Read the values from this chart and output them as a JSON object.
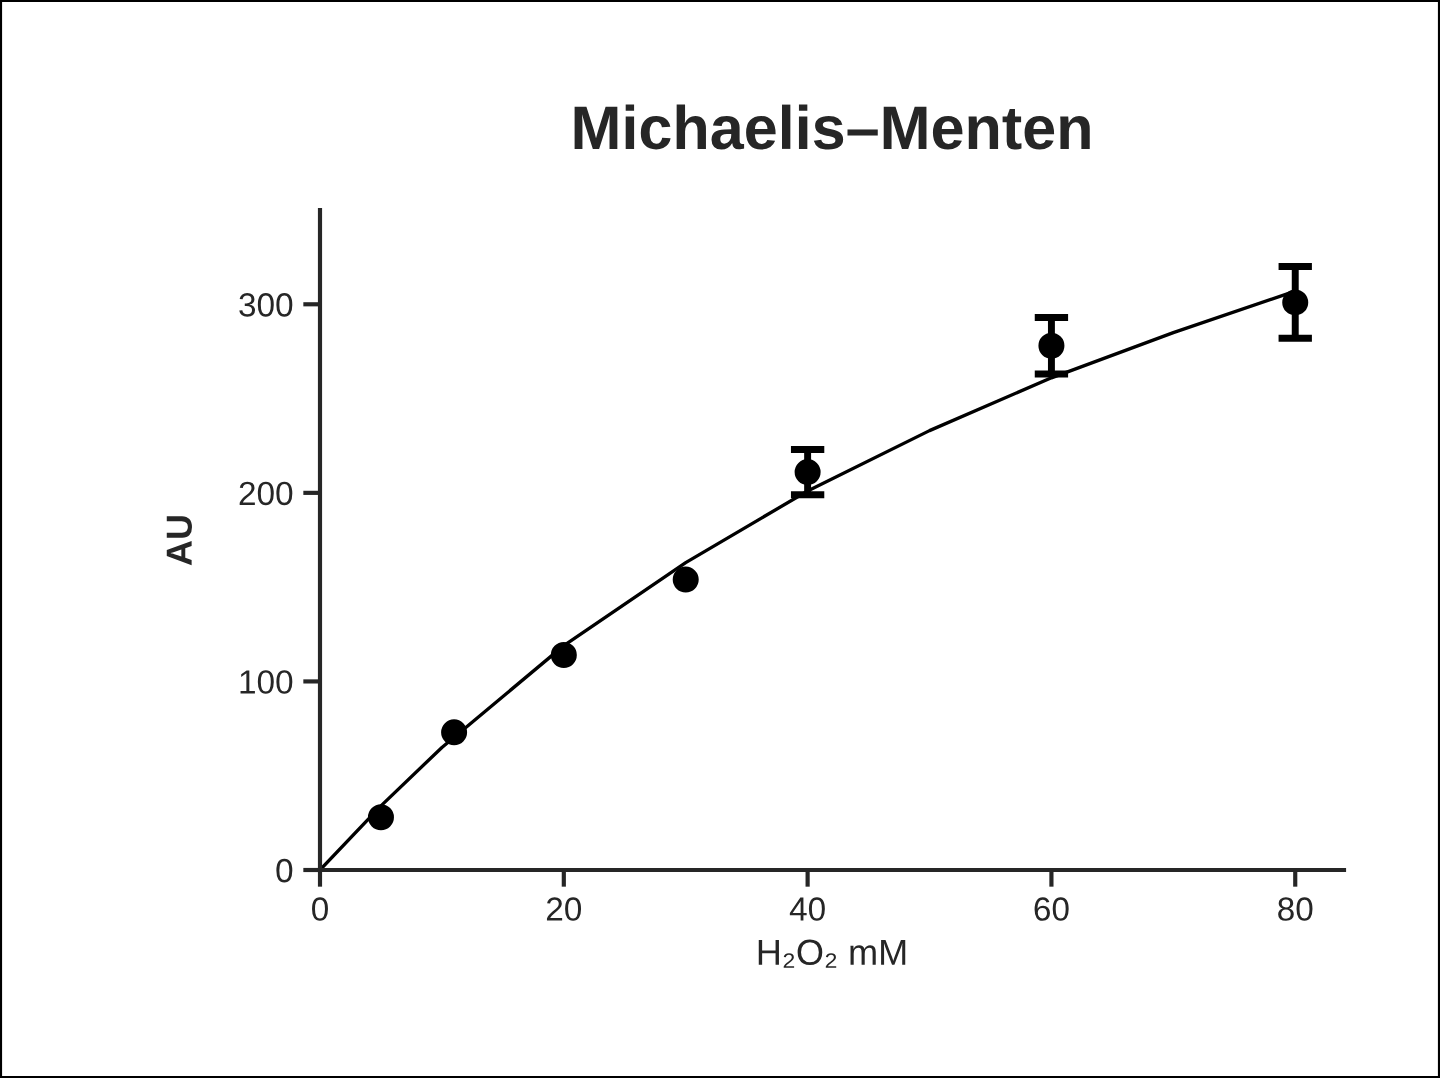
{
  "chart_data": {
    "type": "scatter",
    "title": "Michaelis–Menten",
    "xlabel": "H₂O₂ mM",
    "ylabel": "AU",
    "xlim": [
      0,
      84
    ],
    "xticks": [
      0,
      20,
      40,
      60,
      80
    ],
    "ylim": [
      0,
      350
    ],
    "yticks": [
      0,
      100,
      200,
      300
    ],
    "grid": false,
    "legend": false,
    "series": [
      {
        "color": "#000000",
        "marker": "circle",
        "x": [
          5,
          11,
          20,
          30,
          40,
          60,
          80
        ],
        "values": [
          28,
          73,
          114,
          154,
          211,
          278,
          301
        ],
        "errors": [
          null,
          null,
          null,
          null,
          12,
          15,
          19
        ]
      },
      {
        "type": "line",
        "color": "#000000",
        "line_style": "solid",
        "marker": "none",
        "x": [
          0,
          5,
          10,
          20,
          30,
          40,
          50,
          60,
          70,
          80
        ],
        "values": [
          0,
          34,
          65,
          119,
          163,
          201,
          233,
          261,
          285,
          307
        ]
      }
    ]
  }
}
